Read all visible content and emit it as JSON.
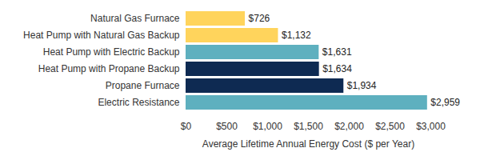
{
  "chart_data": {
    "type": "bar",
    "orientation": "horizontal",
    "categories": [
      "Natural Gas Furnace",
      "Heat Pump with Natural Gas Backup",
      "Heat Pump with Electric Backup",
      "Heat Pump with Propane Backup",
      "Propane Furnace",
      "Electric Resistance"
    ],
    "values": [
      726,
      1132,
      1631,
      1634,
      1934,
      2959
    ],
    "value_labels": [
      "$726",
      "$1,132",
      "$1,631",
      "$1,634",
      "$1,934",
      "$2,959"
    ],
    "colors": [
      "#ffd45c",
      "#ffd45c",
      "#5eb0bf",
      "#0e2a52",
      "#0e2a52",
      "#5eb0bf"
    ],
    "xlabel": "Average Lifetime Annual Energy Cost ($ per Year)",
    "xlim": [
      0,
      3000
    ],
    "xticks": [
      {
        "value": 0,
        "label": "$0"
      },
      {
        "value": 500,
        "label": "$500"
      },
      {
        "value": 1000,
        "label": "$1,000"
      },
      {
        "value": 1500,
        "label": "$1,500"
      },
      {
        "value": 2000,
        "label": "$2,000"
      },
      {
        "value": 2500,
        "label": "$2,500"
      },
      {
        "value": 3000,
        "label": "$3,000"
      }
    ],
    "grid": false,
    "data_labels": true
  }
}
